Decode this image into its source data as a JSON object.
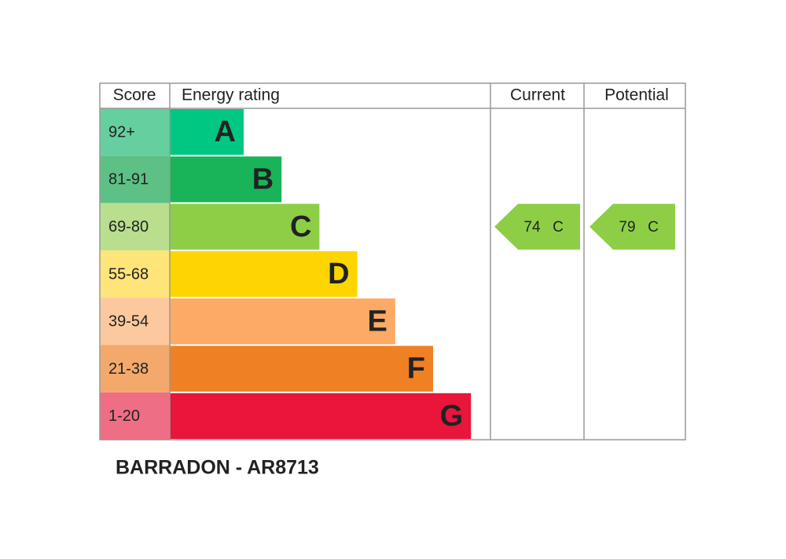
{
  "header": {
    "score": "Score",
    "rating": "Energy rating",
    "current": "Current",
    "potential": "Potential"
  },
  "bands": [
    {
      "score": "92+",
      "letter": "A",
      "color": "#00c781",
      "light": "#66cf9f"
    },
    {
      "score": "81-91",
      "letter": "B",
      "color": "#19b459",
      "light": "#5dc085"
    },
    {
      "score": "69-80",
      "letter": "C",
      "color": "#8dce46",
      "light": "#b8de8e"
    },
    {
      "score": "55-68",
      "letter": "D",
      "color": "#ffd500",
      "light": "#ffe47a"
    },
    {
      "score": "39-54",
      "letter": "E",
      "color": "#fcaa65",
      "light": "#fcc99e"
    },
    {
      "score": "21-38",
      "letter": "F",
      "color": "#ef8023",
      "light": "#f3a96c"
    },
    {
      "score": "1-20",
      "letter": "G",
      "color": "#e9153b",
      "light": "#ee6e86"
    }
  ],
  "current": {
    "score": 74,
    "band": "C"
  },
  "potential": {
    "score": 79,
    "band": "C"
  },
  "footer": "BARRADON - AR8713"
}
